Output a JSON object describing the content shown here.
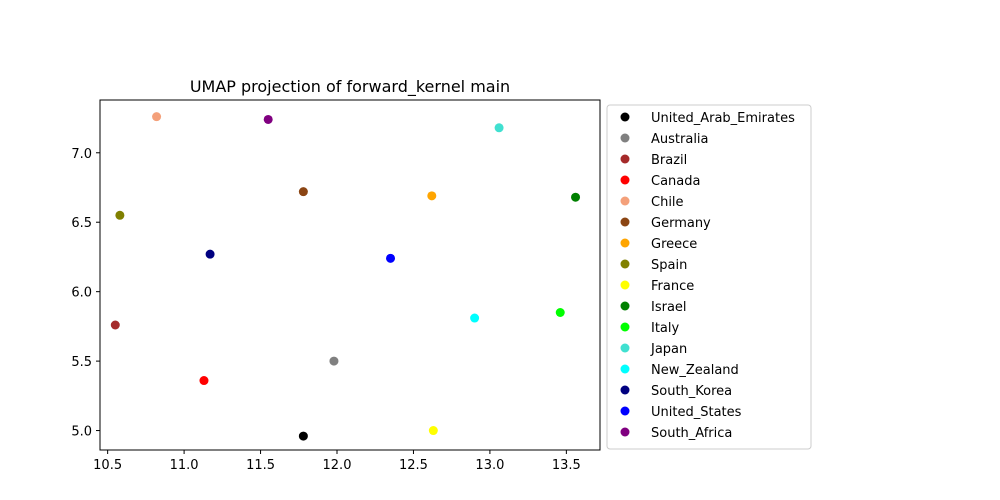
{
  "chart_data": {
    "type": "scatter",
    "title": "UMAP projection of forward_kernel main",
    "xlabel": "",
    "ylabel": "",
    "xlim": [
      10.45,
      13.72
    ],
    "ylim": [
      4.86,
      7.38
    ],
    "xticks": [
      10.5,
      11.0,
      11.5,
      12.0,
      12.5,
      13.0,
      13.5
    ],
    "xtick_labels": [
      "10.5",
      "11.0",
      "11.5",
      "12.0",
      "12.5",
      "13.0",
      "13.5"
    ],
    "yticks": [
      5.0,
      5.5,
      6.0,
      6.5,
      7.0
    ],
    "ytick_labels": [
      "5.0",
      "5.5",
      "6.0",
      "6.5",
      "7.0"
    ],
    "grid": false,
    "legend_position": "outside-right",
    "series": [
      {
        "name": "United_Arab_Emirates",
        "color": "#000000",
        "x": 11.78,
        "y": 4.96
      },
      {
        "name": "Australia",
        "color": "#808080",
        "x": 11.98,
        "y": 5.5
      },
      {
        "name": "Brazil",
        "color": "#a52a2a",
        "x": 10.55,
        "y": 5.76
      },
      {
        "name": "Canada",
        "color": "#ff0000",
        "x": 11.13,
        "y": 5.36
      },
      {
        "name": "Chile",
        "color": "#f4a07a",
        "x": 10.82,
        "y": 7.26
      },
      {
        "name": "Germany",
        "color": "#8b4513",
        "x": 11.78,
        "y": 6.72
      },
      {
        "name": "Greece",
        "color": "#ffa500",
        "x": 12.62,
        "y": 6.69
      },
      {
        "name": "Spain",
        "color": "#808000",
        "x": 10.58,
        "y": 6.55
      },
      {
        "name": "France",
        "color": "#ffff00",
        "x": 12.63,
        "y": 5.0
      },
      {
        "name": "Israel",
        "color": "#008000",
        "x": 13.56,
        "y": 6.68
      },
      {
        "name": "Italy",
        "color": "#00ff00",
        "x": 13.46,
        "y": 5.85
      },
      {
        "name": "Japan",
        "color": "#40e0d0",
        "x": 13.06,
        "y": 7.18
      },
      {
        "name": "New_Zealand",
        "color": "#00ffff",
        "x": 12.9,
        "y": 5.81
      },
      {
        "name": "South_Korea",
        "color": "#000080",
        "x": 11.17,
        "y": 6.27
      },
      {
        "name": "United_States",
        "color": "#0000ff",
        "x": 12.35,
        "y": 6.24
      },
      {
        "name": "South_Africa",
        "color": "#800080",
        "x": 11.55,
        "y": 7.24
      }
    ]
  }
}
